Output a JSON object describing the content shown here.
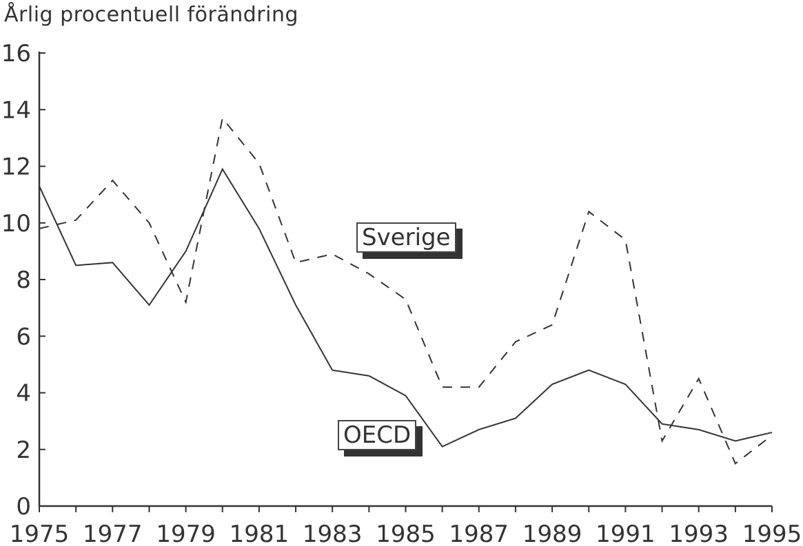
{
  "chart_data": {
    "type": "line",
    "title": "Årlig procentuell förändring",
    "xlabel": "",
    "ylabel": "Årlig procentuell förändring",
    "x": [
      1975,
      1976,
      1977,
      1978,
      1979,
      1980,
      1981,
      1982,
      1983,
      1984,
      1985,
      1986,
      1987,
      1988,
      1989,
      1990,
      1991,
      1992,
      1993,
      1994,
      1995
    ],
    "xlim": [
      1975,
      1995
    ],
    "ylim": [
      0,
      16
    ],
    "x_tick_labels": [
      "1975",
      "1977",
      "1979",
      "1981",
      "1983",
      "1985",
      "1987",
      "1989",
      "1991",
      "1993",
      "1995"
    ],
    "y_tick_labels": [
      "0",
      "2",
      "4",
      "6",
      "8",
      "10",
      "12",
      "14",
      "16"
    ],
    "grid": false,
    "series": [
      {
        "name": "Sverige",
        "style": "dashed",
        "values": [
          9.8,
          10.1,
          11.5,
          10.0,
          7.2,
          13.7,
          12.1,
          8.6,
          8.9,
          8.2,
          7.3,
          4.2,
          4.2,
          5.8,
          6.4,
          10.4,
          9.4,
          2.3,
          4.5,
          1.5,
          2.5
        ]
      },
      {
        "name": "OECD",
        "style": "solid",
        "values": [
          11.3,
          8.5,
          8.6,
          7.1,
          9.0,
          11.9,
          9.8,
          7.1,
          4.8,
          4.6,
          3.9,
          2.1,
          2.7,
          3.1,
          4.3,
          4.8,
          4.3,
          2.9,
          2.7,
          2.3,
          2.6
        ]
      }
    ]
  }
}
